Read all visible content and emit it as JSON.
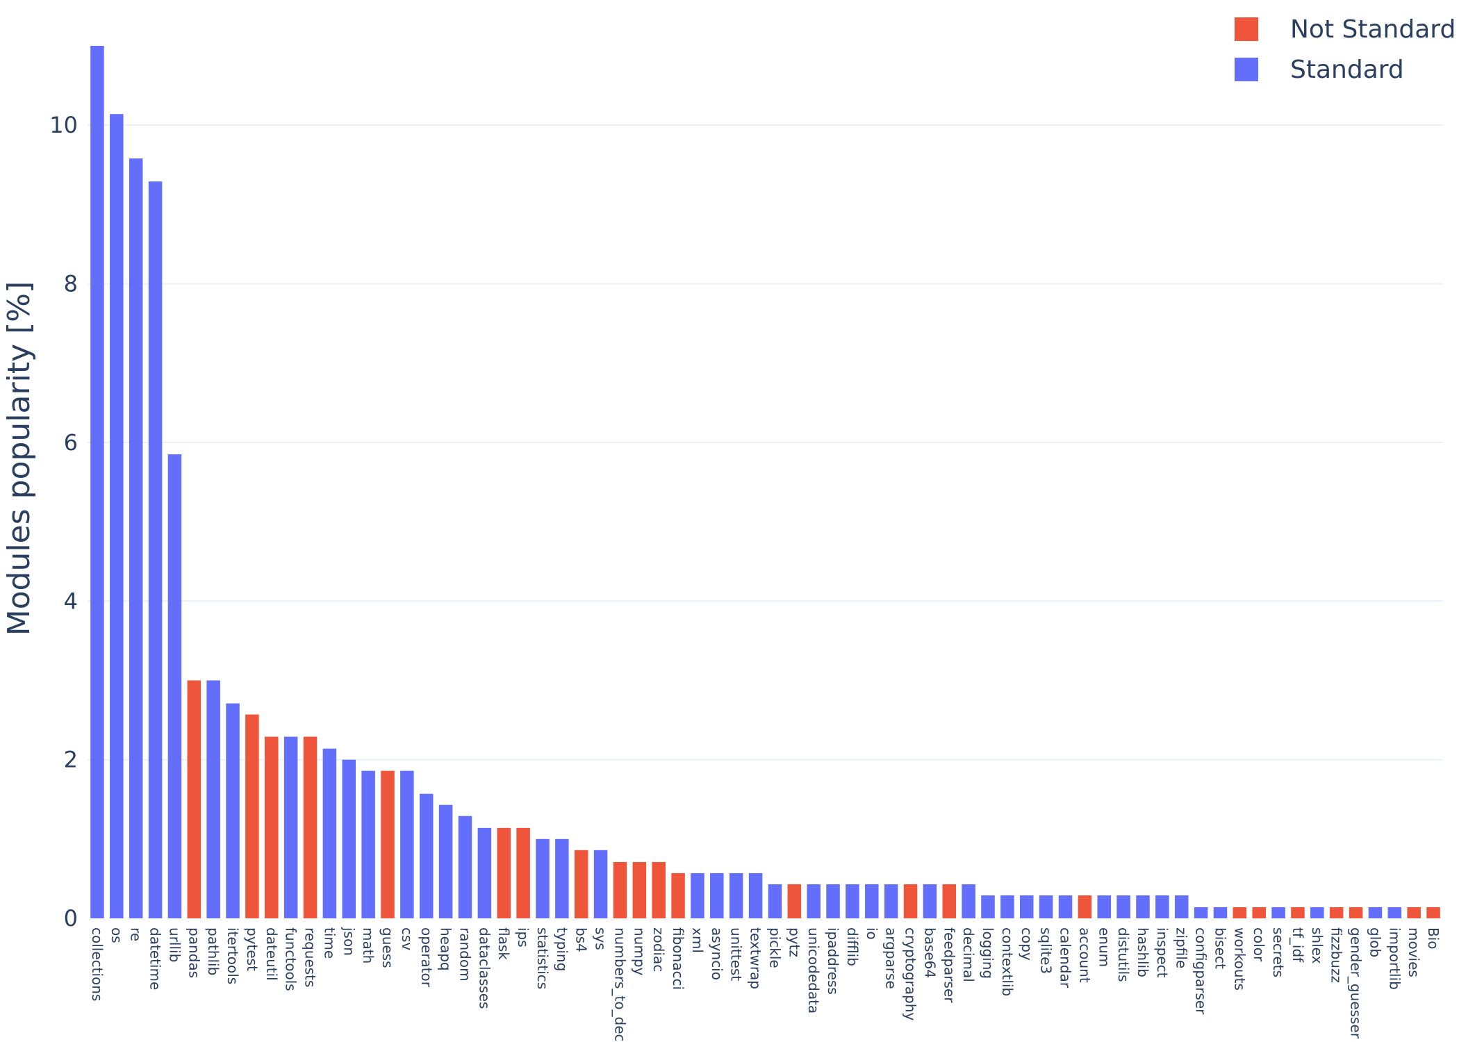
{
  "chart_data": {
    "type": "bar",
    "title": "",
    "xlabel": "",
    "ylabel": "Modules popularity [%]",
    "ylim": [
      0,
      11
    ],
    "yticks": [
      0,
      2,
      4,
      6,
      8,
      10
    ],
    "grid": true,
    "legend_position": "top-right",
    "colors": {
      "Not Standard": "#ef553b",
      "Standard": "#636efa"
    },
    "legend": [
      {
        "name": "Not Standard",
        "color": "#ef553b"
      },
      {
        "name": "Standard",
        "color": "#636efa"
      }
    ],
    "categories": [
      "collections",
      "os",
      "re",
      "datetime",
      "urllib",
      "pandas",
      "pathlib",
      "itertools",
      "pytest",
      "dateutil",
      "functools",
      "requests",
      "time",
      "json",
      "math",
      "guess",
      "csv",
      "operator",
      "heapq",
      "random",
      "dataclasses",
      "flask",
      "ips",
      "statistics",
      "typing",
      "bs4",
      "sys",
      "numbers_to_dec",
      "numpy",
      "zodiac",
      "fibonacci",
      "xml",
      "asyncio",
      "unittest",
      "textwrap",
      "pickle",
      "pytz",
      "unicodedata",
      "ipaddress",
      "difflib",
      "io",
      "argparse",
      "cryptography",
      "base64",
      "feedparser",
      "decimal",
      "logging",
      "contextlib",
      "copy",
      "sqlite3",
      "calendar",
      "account",
      "enum",
      "distutils",
      "hashlib",
      "inspect",
      "zipfile",
      "configparser",
      "bisect",
      "workouts",
      "color",
      "secrets",
      "tf_idf",
      "shlex",
      "fizzbuzz",
      "gender_guesser",
      "glob",
      "importlib",
      "movies",
      "Bio"
    ],
    "values": [
      11.0,
      10.14,
      9.58,
      9.29,
      5.85,
      3.0,
      3.0,
      2.71,
      2.57,
      2.29,
      2.29,
      2.29,
      2.14,
      2.0,
      1.86,
      1.86,
      1.86,
      1.57,
      1.43,
      1.29,
      1.14,
      1.14,
      1.14,
      1.0,
      1.0,
      0.86,
      0.86,
      0.71,
      0.71,
      0.71,
      0.57,
      0.57,
      0.57,
      0.57,
      0.57,
      0.43,
      0.43,
      0.43,
      0.43,
      0.43,
      0.43,
      0.43,
      0.43,
      0.43,
      0.43,
      0.43,
      0.29,
      0.29,
      0.29,
      0.29,
      0.29,
      0.29,
      0.29,
      0.29,
      0.29,
      0.29,
      0.29,
      0.14,
      0.14,
      0.14,
      0.14,
      0.14,
      0.14,
      0.14,
      0.14,
      0.14,
      0.14,
      0.14,
      0.14,
      0.14
    ],
    "groups": [
      "Standard",
      "Standard",
      "Standard",
      "Standard",
      "Standard",
      "Not Standard",
      "Standard",
      "Standard",
      "Not Standard",
      "Not Standard",
      "Standard",
      "Not Standard",
      "Standard",
      "Standard",
      "Standard",
      "Not Standard",
      "Standard",
      "Standard",
      "Standard",
      "Standard",
      "Standard",
      "Not Standard",
      "Not Standard",
      "Standard",
      "Standard",
      "Not Standard",
      "Standard",
      "Not Standard",
      "Not Standard",
      "Not Standard",
      "Not Standard",
      "Standard",
      "Standard",
      "Standard",
      "Standard",
      "Standard",
      "Not Standard",
      "Standard",
      "Standard",
      "Standard",
      "Standard",
      "Standard",
      "Not Standard",
      "Standard",
      "Not Standard",
      "Standard",
      "Standard",
      "Standard",
      "Standard",
      "Standard",
      "Standard",
      "Not Standard",
      "Standard",
      "Standard",
      "Standard",
      "Standard",
      "Standard",
      "Standard",
      "Standard",
      "Not Standard",
      "Not Standard",
      "Standard",
      "Not Standard",
      "Standard",
      "Not Standard",
      "Not Standard",
      "Standard",
      "Standard",
      "Not Standard",
      "Not Standard"
    ]
  }
}
